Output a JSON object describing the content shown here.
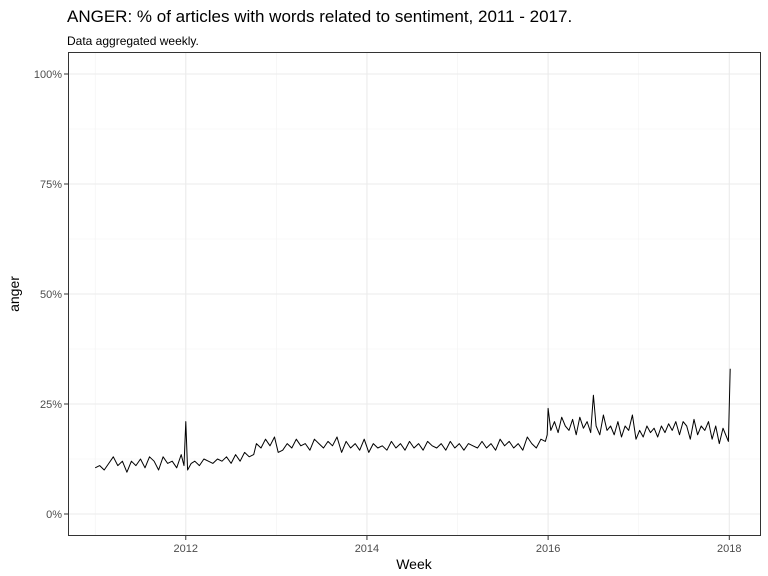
{
  "chart_data": {
    "type": "line",
    "title": "ANGER: % of articles with words related to sentiment, 2011 - 2017.",
    "subtitle": "Data aggregated weekly.",
    "xlabel": "Week",
    "ylabel": "anger",
    "x_ticks": [
      "2012",
      "2014",
      "2016",
      "2018"
    ],
    "y_ticks": [
      "0%",
      "25%",
      "50%",
      "75%",
      "100%"
    ],
    "xlim": [
      2010.7,
      2018.35
    ],
    "ylim": [
      -0.05,
      1.05
    ],
    "grid": true,
    "line_color": "#000000",
    "series": [
      {
        "x": [
          2011.0,
          2011.05,
          2011.1,
          2011.15,
          2011.2,
          2011.25,
          2011.3,
          2011.35,
          2011.4,
          2011.45,
          2011.5,
          2011.55,
          2011.6,
          2011.65,
          2011.7,
          2011.75,
          2011.8,
          2011.85,
          2011.9,
          2011.95,
          2011.98,
          2012.0,
          2012.02,
          2012.06,
          2012.1,
          2012.15,
          2012.2,
          2012.25,
          2012.3,
          2012.35,
          2012.4,
          2012.45,
          2012.5,
          2012.55,
          2012.6,
          2012.65,
          2012.7,
          2012.75,
          2012.78,
          2012.83,
          2012.88,
          2012.93,
          2012.98,
          2013.02,
          2013.07,
          2013.12,
          2013.17,
          2013.22,
          2013.27,
          2013.32,
          2013.37,
          2013.42,
          2013.47,
          2013.52,
          2013.57,
          2013.62,
          2013.67,
          2013.72,
          2013.77,
          2013.82,
          2013.87,
          2013.92,
          2013.97,
          2014.02,
          2014.07,
          2014.12,
          2014.17,
          2014.22,
          2014.27,
          2014.32,
          2014.37,
          2014.42,
          2014.47,
          2014.52,
          2014.57,
          2014.62,
          2014.67,
          2014.72,
          2014.77,
          2014.82,
          2014.87,
          2014.92,
          2014.97,
          2015.02,
          2015.07,
          2015.12,
          2015.17,
          2015.22,
          2015.27,
          2015.32,
          2015.37,
          2015.42,
          2015.47,
          2015.52,
          2015.57,
          2015.62,
          2015.67,
          2015.72,
          2015.77,
          2015.82,
          2015.87,
          2015.92,
          2015.97,
          2015.99,
          2016.0,
          2016.03,
          2016.07,
          2016.11,
          2016.15,
          2016.19,
          2016.23,
          2016.27,
          2016.31,
          2016.35,
          2016.39,
          2016.43,
          2016.47,
          2016.5,
          2016.53,
          2016.57,
          2016.61,
          2016.65,
          2016.69,
          2016.73,
          2016.77,
          2016.81,
          2016.85,
          2016.89,
          2016.93,
          2016.97,
          2017.01,
          2017.05,
          2017.09,
          2017.13,
          2017.17,
          2017.21,
          2017.25,
          2017.29,
          2017.33,
          2017.37,
          2017.41,
          2017.45,
          2017.49,
          2017.53,
          2017.57,
          2017.61,
          2017.65,
          2017.69,
          2017.73,
          2017.77,
          2017.81,
          2017.85,
          2017.89,
          2017.93,
          2017.97,
          2017.99,
          2018.01
        ],
        "values": [
          0.105,
          0.11,
          0.1,
          0.115,
          0.13,
          0.11,
          0.12,
          0.095,
          0.12,
          0.11,
          0.125,
          0.105,
          0.13,
          0.12,
          0.1,
          0.13,
          0.115,
          0.12,
          0.105,
          0.135,
          0.11,
          0.21,
          0.1,
          0.115,
          0.12,
          0.11,
          0.125,
          0.12,
          0.115,
          0.125,
          0.12,
          0.13,
          0.115,
          0.135,
          0.12,
          0.14,
          0.13,
          0.135,
          0.16,
          0.15,
          0.17,
          0.155,
          0.175,
          0.14,
          0.145,
          0.16,
          0.15,
          0.17,
          0.155,
          0.16,
          0.145,
          0.17,
          0.16,
          0.15,
          0.165,
          0.155,
          0.175,
          0.14,
          0.165,
          0.15,
          0.16,
          0.145,
          0.17,
          0.14,
          0.16,
          0.15,
          0.155,
          0.145,
          0.165,
          0.15,
          0.16,
          0.145,
          0.165,
          0.15,
          0.16,
          0.145,
          0.165,
          0.155,
          0.15,
          0.16,
          0.145,
          0.165,
          0.15,
          0.16,
          0.145,
          0.16,
          0.155,
          0.15,
          0.165,
          0.15,
          0.16,
          0.145,
          0.17,
          0.155,
          0.165,
          0.15,
          0.16,
          0.145,
          0.175,
          0.16,
          0.15,
          0.17,
          0.165,
          0.18,
          0.24,
          0.19,
          0.21,
          0.185,
          0.22,
          0.2,
          0.19,
          0.215,
          0.18,
          0.22,
          0.195,
          0.21,
          0.185,
          0.27,
          0.2,
          0.18,
          0.225,
          0.19,
          0.2,
          0.18,
          0.21,
          0.175,
          0.2,
          0.19,
          0.225,
          0.17,
          0.19,
          0.175,
          0.2,
          0.185,
          0.195,
          0.175,
          0.2,
          0.185,
          0.205,
          0.19,
          0.21,
          0.18,
          0.21,
          0.2,
          0.17,
          0.215,
          0.18,
          0.2,
          0.19,
          0.21,
          0.17,
          0.2,
          0.16,
          0.195,
          0.175,
          0.165,
          0.33
        ]
      }
    ]
  }
}
